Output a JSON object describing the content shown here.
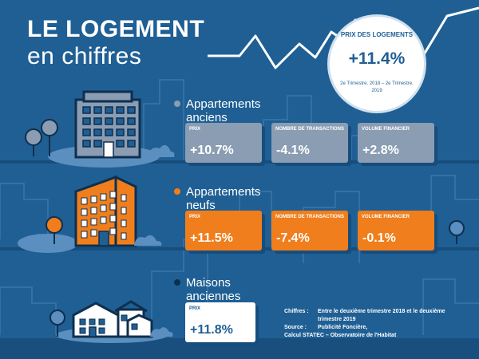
{
  "header": {
    "title_line1": "LE LOGEMENT",
    "title_line2": "en chiffres"
  },
  "badge": {
    "title": "PRIX DES LOGEMENTS",
    "value": "+11.4%",
    "period": "2e Trimestre. 2018 – 2e Trimestre. 2019"
  },
  "sections": [
    {
      "label_line1": "Appartements",
      "label_line2": "anciens",
      "dot_color": "#8a9db3",
      "cards": [
        {
          "label": "PRIX",
          "value": "+10.7%"
        },
        {
          "label": "NOMBRE DE TRANSACTIONS",
          "value": "-4.1%"
        },
        {
          "label": "VOLUME FINANCIER",
          "value": "+2.8%"
        }
      ]
    },
    {
      "label_line1": "Appartements",
      "label_line2": "neufs",
      "dot_color": "#f07e1c",
      "cards": [
        {
          "label": "PRIX",
          "value": "+11.5%"
        },
        {
          "label": "NOMBRE DE TRANSACTIONS",
          "value": "-7.4%"
        },
        {
          "label": "VOLUME FINANCIER",
          "value": "-0.1%"
        }
      ]
    },
    {
      "label_line1": "Maisons",
      "label_line2": "anciennes",
      "dot_color": "#0f2f4f",
      "cards": [
        {
          "label": "PRIX",
          "value": "+11.8%"
        }
      ]
    }
  ],
  "source": {
    "chiffres_key": "Chiffres :",
    "chiffres_value": "Entre le deuxième trimestre 2018 et le deuxième trimestre 2019",
    "source_key": "Source :",
    "source_value": "Publicité Foncière,",
    "source_value2": "Calcul STATEC – Observatoire de l'Habitat"
  },
  "colors": {
    "background": "#1f5f94",
    "grey_card": "#8a9db3",
    "orange_card": "#f07e1c",
    "white": "#ffffff"
  },
  "icons": [
    "trend-line-icon",
    "building-icon",
    "tree-icon",
    "bush-icon",
    "house-icon"
  ]
}
